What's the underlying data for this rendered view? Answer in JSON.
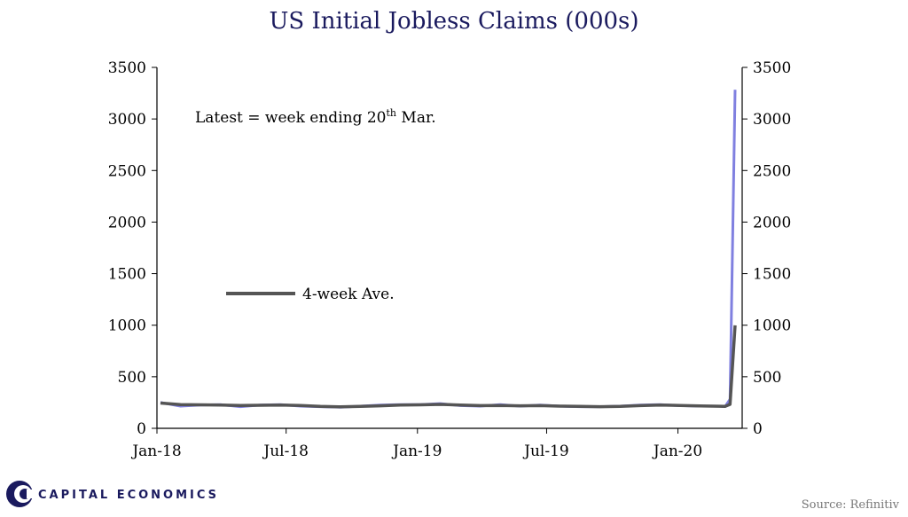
{
  "chart_data": {
    "type": "line",
    "title": "US Initial Jobless Claims (000s)",
    "xlabel": "",
    "ylabel": "",
    "ylim": [
      0,
      3500
    ],
    "yticks": [
      "0",
      "500",
      "1000",
      "1500",
      "2000",
      "2500",
      "3000",
      "3500"
    ],
    "xticks": [
      "Jan-18",
      "Jul-18",
      "Jan-19",
      "Jul-19",
      "Jan-20"
    ],
    "x_range": [
      "2018-01-01",
      "2020-03-31"
    ],
    "grid": false,
    "annotation": {
      "text": "Latest = week ending  20",
      "sup": "th",
      "text_after": " Mar."
    },
    "legend": {
      "label": "4-week Ave.",
      "placement": "middle-left"
    },
    "series": [
      {
        "name": "",
        "color": "#8080e0",
        "x": [
          "2018-01-06",
          "2018-02-03",
          "2018-03-03",
          "2018-03-31",
          "2018-04-28",
          "2018-05-26",
          "2018-06-23",
          "2018-07-21",
          "2018-08-18",
          "2018-09-15",
          "2018-10-13",
          "2018-11-10",
          "2018-12-08",
          "2019-01-05",
          "2019-02-02",
          "2019-03-02",
          "2019-03-30",
          "2019-04-27",
          "2019-05-25",
          "2019-06-22",
          "2019-07-20",
          "2019-08-17",
          "2019-09-14",
          "2019-10-12",
          "2019-11-09",
          "2019-12-07",
          "2020-01-04",
          "2020-02-01",
          "2020-02-29",
          "2020-03-07",
          "2020-03-14",
          "2020-03-21"
        ],
        "values": [
          250,
          215,
          225,
          230,
          210,
          225,
          230,
          215,
          210,
          205,
          215,
          225,
          230,
          230,
          240,
          220,
          215,
          230,
          215,
          225,
          215,
          210,
          210,
          215,
          225,
          230,
          220,
          215,
          215,
          211,
          282,
          3283
        ]
      },
      {
        "name": "4-week Ave.",
        "color": "#555555",
        "x": [
          "2018-01-06",
          "2018-02-03",
          "2018-03-03",
          "2018-03-31",
          "2018-04-28",
          "2018-05-26",
          "2018-06-23",
          "2018-07-21",
          "2018-08-18",
          "2018-09-15",
          "2018-10-13",
          "2018-11-10",
          "2018-12-08",
          "2019-01-05",
          "2019-02-02",
          "2019-03-02",
          "2019-03-30",
          "2019-04-27",
          "2019-05-25",
          "2019-06-22",
          "2019-07-20",
          "2019-08-17",
          "2019-09-14",
          "2019-10-12",
          "2019-11-09",
          "2019-12-07",
          "2020-01-04",
          "2020-02-01",
          "2020-02-29",
          "2020-03-07",
          "2020-03-14",
          "2020-03-21"
        ],
        "values": [
          245,
          230,
          228,
          225,
          222,
          224,
          226,
          222,
          212,
          208,
          212,
          218,
          225,
          228,
          232,
          226,
          220,
          222,
          218,
          220,
          215,
          212,
          210,
          212,
          220,
          225,
          222,
          217,
          214,
          213,
          232,
          998
        ]
      }
    ]
  },
  "branding": {
    "logo_text": "CAPITAL ECONOMICS",
    "source": "Source: Refinitiv"
  }
}
